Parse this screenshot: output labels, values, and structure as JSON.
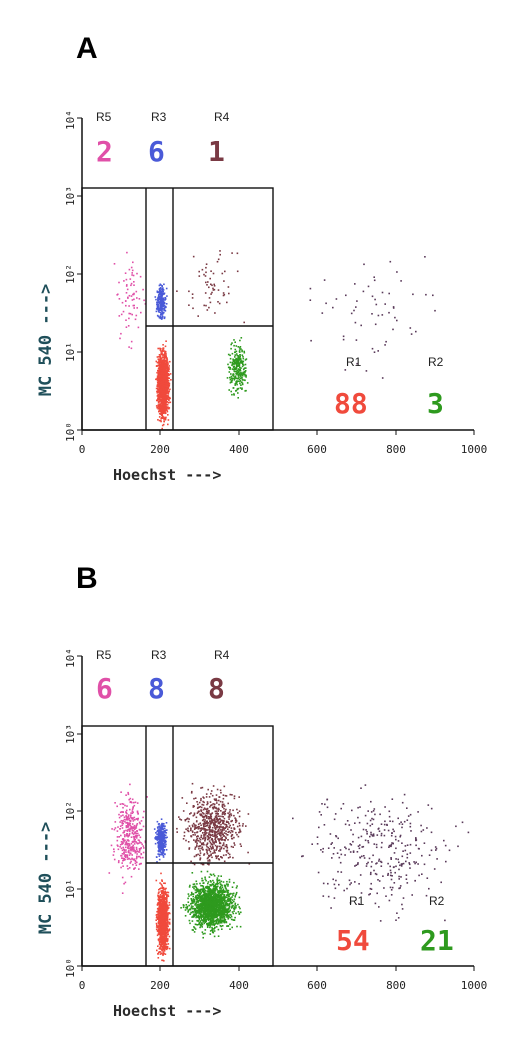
{
  "chart_data": [
    {
      "type": "scatter",
      "panel_label": "A",
      "xlabel": "Hoechst --->",
      "ylabel": "MC 540 --->",
      "xlim": [
        0,
        1000
      ],
      "ylim": [
        1,
        10000
      ],
      "y_scale": "log",
      "x_ticks": [
        "0",
        "200",
        "400",
        "600",
        "800",
        "1000"
      ],
      "y_ticks": [
        "10⁰",
        "10¹",
        "10²",
        "10³",
        "10⁴"
      ],
      "regions": [
        {
          "name": "R1",
          "value": "88",
          "color": "#f04a3c"
        },
        {
          "name": "R2",
          "value": "3",
          "color": "#2e9a1e"
        },
        {
          "name": "R3",
          "value": "6",
          "color": "#4a5ad8"
        },
        {
          "name": "R4",
          "value": "1",
          "color": "#7a3a44"
        },
        {
          "name": "R5",
          "value": "2",
          "color": "#e050a8"
        }
      ]
    },
    {
      "type": "scatter",
      "panel_label": "B",
      "xlabel": "Hoechst --->",
      "ylabel": "MC 540 --->",
      "xlim": [
        0,
        1000
      ],
      "ylim": [
        1,
        10000
      ],
      "y_scale": "log",
      "x_ticks": [
        "0",
        "200",
        "400",
        "600",
        "800",
        "1000"
      ],
      "y_ticks": [
        "10⁰",
        "10¹",
        "10²",
        "10³",
        "10⁴"
      ],
      "regions": [
        {
          "name": "R1",
          "value": "54",
          "color": "#f04a3c"
        },
        {
          "name": "R2",
          "value": "21",
          "color": "#2e9a1e"
        },
        {
          "name": "R3",
          "value": "8",
          "color": "#4a5ad8"
        },
        {
          "name": "R4",
          "value": "8",
          "color": "#7a3a44"
        },
        {
          "name": "R5",
          "value": "6",
          "color": "#e050a8"
        }
      ]
    }
  ]
}
